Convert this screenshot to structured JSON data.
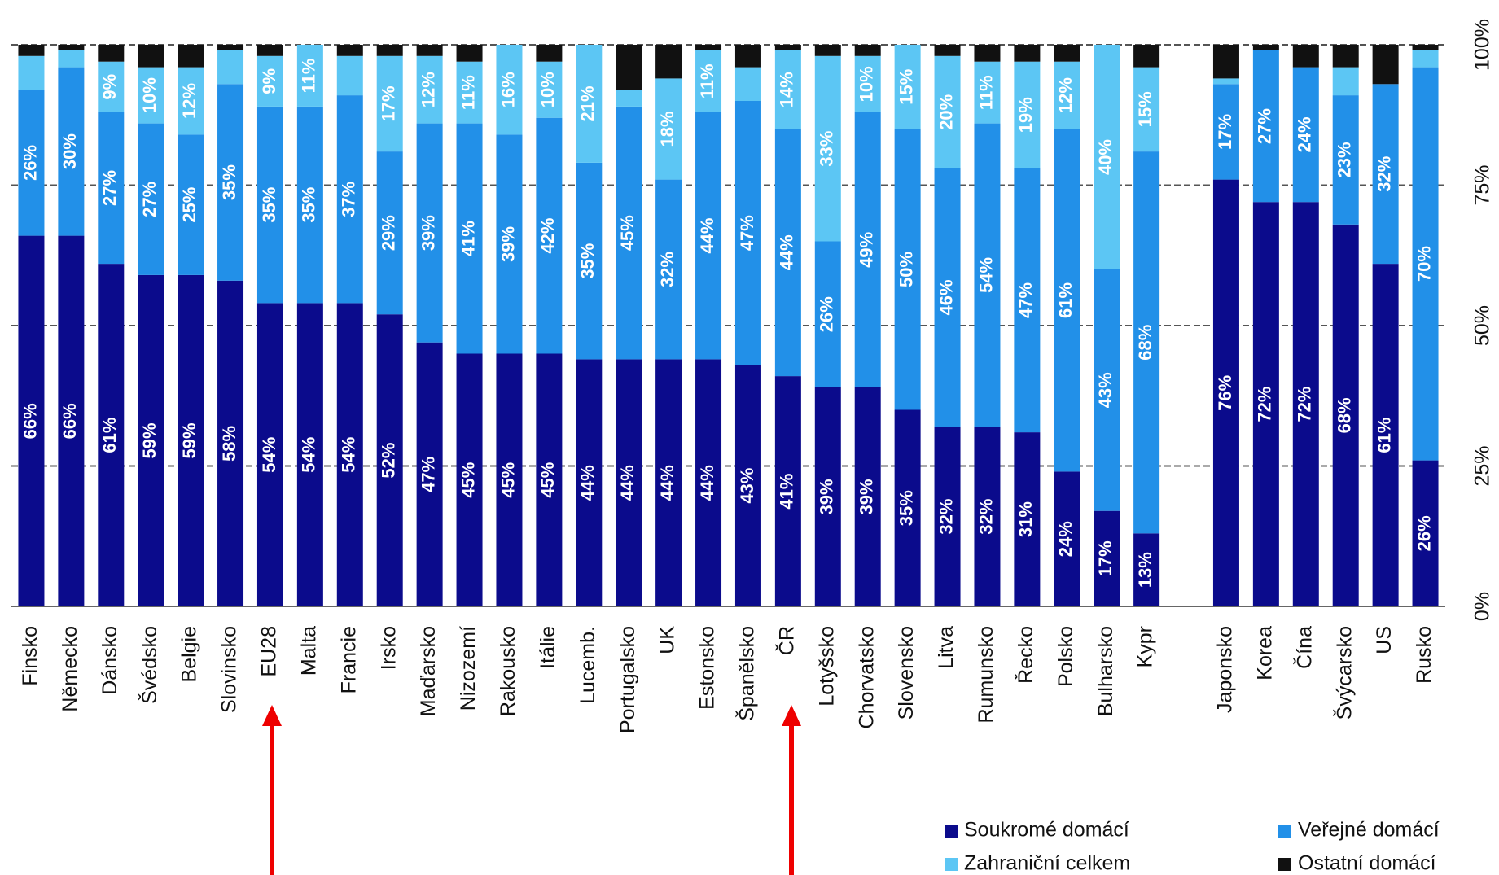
{
  "chart_data": {
    "type": "stacked-bar",
    "categories": [
      "Finsko",
      "Německo",
      "Dánsko",
      "Švédsko",
      "Belgie",
      "Slovinsko",
      "EU28",
      "Malta",
      "Francie",
      "Irsko",
      "Maďarsko",
      "Nizozemí",
      "Rakousko",
      "Itálie",
      "Lucemb.",
      "Portugalsko",
      "UK",
      "Estonsko",
      "Španělsko",
      "ČR",
      "Lotyšsko",
      "Chorvatsko",
      "Slovensko",
      "Litva",
      "Rumunsko",
      "Řecko",
      "Polsko",
      "Bulharsko",
      "Kypr",
      null,
      "Japonsko",
      "Korea",
      "Čína",
      "Švýcarsko",
      "US",
      "Rusko"
    ],
    "series": [
      {
        "name": "Soukromé domácí",
        "color": "#0b0b8c",
        "values": [
          66,
          66,
          61,
          59,
          59,
          58,
          54,
          54,
          54,
          52,
          47,
          45,
          45,
          45,
          44,
          44,
          44,
          44,
          43,
          41,
          39,
          39,
          35,
          32,
          32,
          31,
          24,
          17,
          13,
          null,
          76,
          72,
          72,
          68,
          61,
          26
        ],
        "value_labels": [
          "66%",
          "66%",
          "61%",
          "59%",
          "59%",
          "58%",
          "54%",
          "54%",
          "54%",
          "52%",
          "47%",
          "45%",
          "45%",
          "45%",
          "44%",
          "44%",
          "44%",
          "44%",
          "43%",
          "41%",
          "39%",
          "39%",
          "35%",
          "32%",
          "32%",
          "31%",
          "24%",
          "17%",
          "13%",
          null,
          "76%",
          "72%",
          "72%",
          "68%",
          "61%",
          "26%"
        ]
      },
      {
        "name": "Veřejné domácí",
        "color": "#2290e8",
        "values": [
          26,
          30,
          27,
          27,
          25,
          35,
          35,
          35,
          37,
          29,
          39,
          41,
          39,
          42,
          35,
          45,
          32,
          44,
          47,
          44,
          26,
          49,
          50,
          46,
          54,
          47,
          61,
          43,
          68,
          null,
          17,
          27,
          24,
          23,
          32,
          70
        ],
        "value_labels": [
          "26%",
          "30%",
          "27%",
          "27%",
          "25%",
          "35%",
          "35%",
          "35%",
          "37%",
          "29%",
          "39%",
          "41%",
          "39%",
          "42%",
          "35%",
          "45%",
          "32%",
          "44%",
          "47%",
          "44%",
          "26%",
          "49%",
          "50%",
          "46%",
          "54%",
          "47%",
          "61%",
          "43%",
          "68%",
          null,
          "17%",
          "27%",
          "24%",
          "23%",
          "32%",
          "70%"
        ]
      },
      {
        "name": "Zahraniční celkem",
        "color": "#5cc6f4",
        "values": [
          6,
          3,
          9,
          10,
          12,
          6,
          9,
          11,
          7,
          17,
          12,
          11,
          16,
          10,
          21,
          3,
          18,
          11,
          6,
          14,
          33,
          10,
          15,
          20,
          11,
          19,
          12,
          40,
          15,
          null,
          1,
          0,
          0,
          5,
          0,
          3
        ],
        "value_labels": [
          null,
          null,
          "9%",
          "10%",
          "12%",
          null,
          "9%",
          "11%",
          null,
          "17%",
          "12%",
          "11%",
          "16%",
          "10%",
          "21%",
          null,
          "18%",
          "11%",
          null,
          "14%",
          "33%",
          "10%",
          "15%",
          "20%",
          "11%",
          "19%",
          "12%",
          "40%",
          "15%",
          null,
          null,
          null,
          null,
          null,
          null,
          null
        ]
      },
      {
        "name": "Ostatní domácí",
        "color": "#111111",
        "values": [
          2,
          1,
          3,
          4,
          4,
          1,
          2,
          0,
          2,
          2,
          2,
          3,
          0,
          3,
          0,
          8,
          6,
          1,
          4,
          1,
          2,
          2,
          0,
          2,
          3,
          3,
          3,
          0,
          4,
          null,
          6,
          1,
          4,
          4,
          7,
          1
        ]
      }
    ],
    "ylim": [
      0,
      100
    ],
    "yticks": [
      {
        "value": 0,
        "label": "0%"
      },
      {
        "value": 25,
        "label": "25%"
      },
      {
        "value": 50,
        "label": "50%"
      },
      {
        "value": 75,
        "label": "75%"
      },
      {
        "value": 100,
        "label": "100%"
      }
    ],
    "grid": true,
    "legend": "bottom-right"
  }
}
